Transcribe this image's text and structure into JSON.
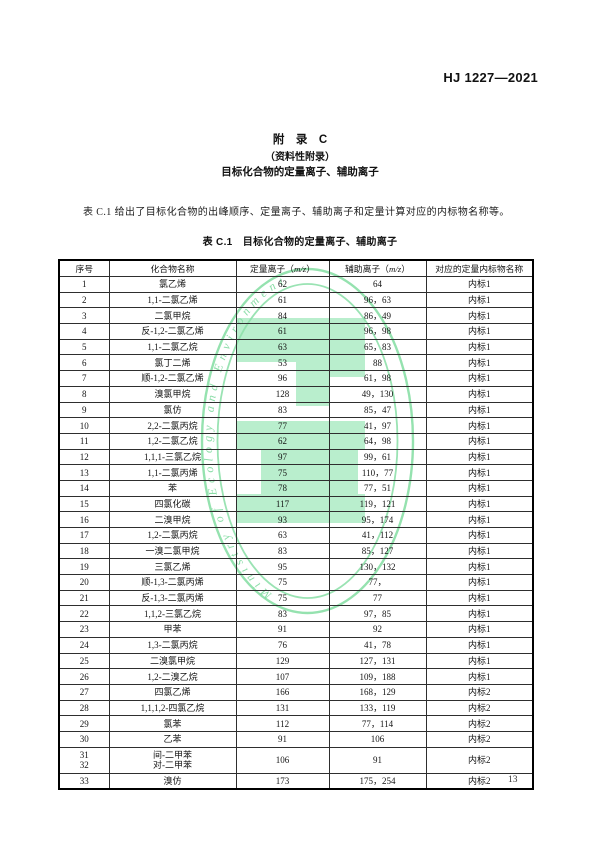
{
  "page": {
    "doc_number": "HJ 1227—2021",
    "page_number": "13"
  },
  "appendix": {
    "title": "附　录　C",
    "subtitle": "（资料性附录）",
    "heading": "目标化合物的定量离子、辅助离子"
  },
  "intro_paragraph": "表 C.1 给出了目标化合物的出峰顺序、定量离子、辅助离子和定量计算对应的内标物名称等。",
  "table": {
    "caption": "表 C.1　目标化合物的定量离子、辅助离子",
    "headers": {
      "no": "序号",
      "name": "化合物名称",
      "quant_pre": "定量离子（",
      "aux_pre": "辅助离子（",
      "mz": "m/z",
      "paren_close": "）",
      "internal": "对应的定量内标物名称"
    },
    "rows": [
      {
        "no": "1",
        "name": "氯乙烯",
        "quant": "62",
        "aux": "64",
        "internal": "内标1"
      },
      {
        "no": "2",
        "name": "1,1-二氯乙烯",
        "quant": "61",
        "aux": "96，63",
        "internal": "内标1"
      },
      {
        "no": "3",
        "name": "二氯甲烷",
        "quant": "84",
        "aux": "86，49",
        "internal": "内标1"
      },
      {
        "no": "4",
        "name": "反-1,2-二氯乙烯",
        "quant": "61",
        "aux": "96，98",
        "internal": "内标1"
      },
      {
        "no": "5",
        "name": "1,1-二氯乙烷",
        "quant": "63",
        "aux": "65，83",
        "internal": "内标1"
      },
      {
        "no": "6",
        "name": "氯丁二烯",
        "quant": "53",
        "aux": "88",
        "internal": "内标1"
      },
      {
        "no": "7",
        "name": "顺-1,2-二氯乙烯",
        "quant": "96",
        "aux": "61，98",
        "internal": "内标1"
      },
      {
        "no": "8",
        "name": "溴氯甲烷",
        "quant": "128",
        "aux": "49，130",
        "internal": "内标1"
      },
      {
        "no": "9",
        "name": "氯仿",
        "quant": "83",
        "aux": "85，47",
        "internal": "内标1"
      },
      {
        "no": "10",
        "name": "2,2-二氯丙烷",
        "quant": "77",
        "aux": "41，97",
        "internal": "内标1"
      },
      {
        "no": "11",
        "name": "1,2-二氯乙烷",
        "quant": "62",
        "aux": "64，98",
        "internal": "内标1"
      },
      {
        "no": "12",
        "name": "1,1,1-三氯乙烷",
        "quant": "97",
        "aux": "99，61",
        "internal": "内标1"
      },
      {
        "no": "13",
        "name": "1,1-二氯丙烯",
        "quant": "75",
        "aux": "110，77",
        "internal": "内标1"
      },
      {
        "no": "14",
        "name": "苯",
        "quant": "78",
        "aux": "77，51",
        "internal": "内标1"
      },
      {
        "no": "15",
        "name": "四氯化碳",
        "quant": "117",
        "aux": "119，121",
        "internal": "内标1"
      },
      {
        "no": "16",
        "name": "二溴甲烷",
        "quant": "93",
        "aux": "95，174",
        "internal": "内标1"
      },
      {
        "no": "17",
        "name": "1,2-二氯丙烷",
        "quant": "63",
        "aux": "41，112",
        "internal": "内标1"
      },
      {
        "no": "18",
        "name": "一溴二氯甲烷",
        "quant": "83",
        "aux": "85，127",
        "internal": "内标1"
      },
      {
        "no": "19",
        "name": "三氯乙烯",
        "quant": "95",
        "aux": "130，132",
        "internal": "内标1"
      },
      {
        "no": "20",
        "name": "顺-1,3-二氯丙烯",
        "quant": "75",
        "aux": "77，",
        "internal": "内标1"
      },
      {
        "no": "21",
        "name": "反-1,3-二氯丙烯",
        "quant": "75",
        "aux": "77",
        "internal": "内标1"
      },
      {
        "no": "22",
        "name": "1,1,2-三氯乙烷",
        "quant": "83",
        "aux": "97，85",
        "internal": "内标1"
      },
      {
        "no": "23",
        "name": "甲苯",
        "quant": "91",
        "aux": "92",
        "internal": "内标1"
      },
      {
        "no": "24",
        "name": "1,3-二氯丙烷",
        "quant": "76",
        "aux": "41，78",
        "internal": "内标1"
      },
      {
        "no": "25",
        "name": "二溴氯甲烷",
        "quant": "129",
        "aux": "127，131",
        "internal": "内标1"
      },
      {
        "no": "26",
        "name": "1,2-二溴乙烷",
        "quant": "107",
        "aux": "109，188",
        "internal": "内标1"
      },
      {
        "no": "27",
        "name": "四氯乙烯",
        "quant": "166",
        "aux": "168，129",
        "internal": "内标2"
      },
      {
        "no": "28",
        "name": "1,1,1,2-四氯乙烷",
        "quant": "131",
        "aux": "133，119",
        "internal": "内标2"
      },
      {
        "no": "29",
        "name": "氯苯",
        "quant": "112",
        "aux": "77，114",
        "internal": "内标2"
      },
      {
        "no": "30",
        "name": "乙苯",
        "quant": "91",
        "aux": "106",
        "internal": "内标2"
      },
      {
        "no": [
          "31",
          "32"
        ],
        "name": [
          "间-二甲苯",
          "对-二甲苯"
        ],
        "quant": "106",
        "aux": "91",
        "internal": "内标2",
        "merged": true
      },
      {
        "no": "33",
        "name": "溴仿",
        "quant": "173",
        "aux": "175，254",
        "internal": "内标2"
      }
    ]
  },
  "watermark": {
    "ring_text": "Ministry of Ecology and Environment",
    "ring_color": "#8fe0ab",
    "text_color": "#8adda7",
    "glyph_color": "#b9eecd"
  }
}
